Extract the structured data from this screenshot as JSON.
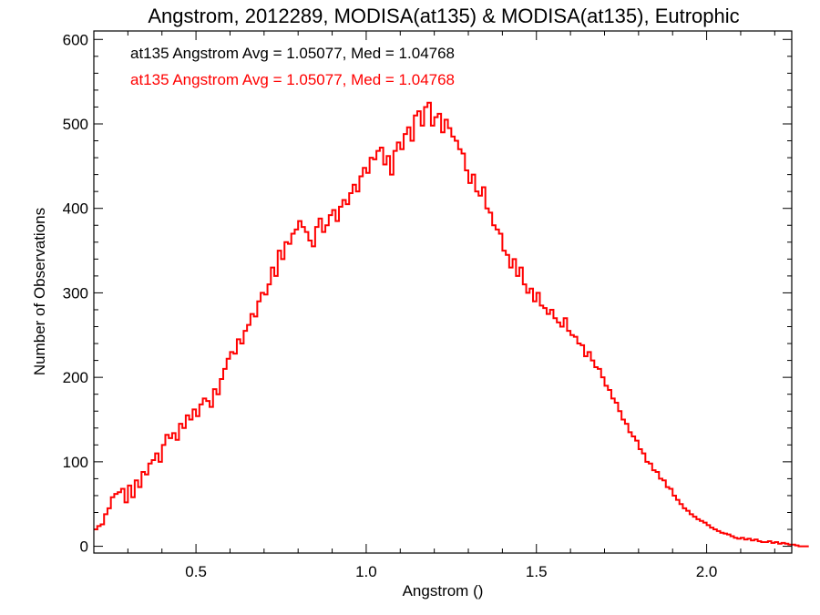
{
  "chart_data": {
    "type": "histogram",
    "title": "Angstrom, 2012289, MODISA(at135) & MODISA(at135), Eutrophic",
    "xlabel": "Angstrom ()",
    "ylabel": "Number of Observations",
    "xlim": [
      0.2,
      2.25
    ],
    "ylim": [
      -8,
      610
    ],
    "xticks": [
      0.5,
      1.0,
      1.5,
      2.0
    ],
    "xtick_labels": [
      "0.5",
      "1.0",
      "1.5",
      "2.0"
    ],
    "yticks": [
      0,
      100,
      200,
      300,
      400,
      500,
      600
    ],
    "ytick_labels": [
      "0",
      "100",
      "200",
      "300",
      "400",
      "500",
      "600"
    ],
    "grid": false,
    "annotations": [
      {
        "text": "at135 Angstrom Avg = 1.05077, Med = 1.04768",
        "color": "#000000"
      },
      {
        "text": "at135 Angstrom Avg = 1.05077, Med = 1.04768",
        "color": "#ff0000"
      }
    ],
    "series": [
      {
        "color": "#ff0000",
        "bin_start": 0.2,
        "bin_width": 0.01,
        "values": [
          20,
          24,
          26,
          38,
          45,
          58,
          62,
          64,
          68,
          52,
          72,
          58,
          78,
          70,
          88,
          85,
          98,
          102,
          110,
          100,
          120,
          132,
          128,
          134,
          126,
          145,
          140,
          155,
          150,
          162,
          154,
          168,
          175,
          172,
          165,
          186,
          180,
          198,
          210,
          222,
          230,
          228,
          245,
          240,
          255,
          262,
          275,
          272,
          290,
          300,
          298,
          310,
          330,
          320,
          350,
          340,
          360,
          358,
          370,
          375,
          385,
          378,
          372,
          362,
          355,
          378,
          388,
          372,
          380,
          392,
          398,
          385,
          402,
          410,
          405,
          418,
          428,
          420,
          438,
          448,
          442,
          460,
          458,
          468,
          472,
          452,
          462,
          440,
          468,
          478,
          470,
          488,
          496,
          480,
          510,
          515,
          498,
          520,
          525,
          498,
          508,
          512,
          490,
          505,
          495,
          485,
          480,
          470,
          465,
          445,
          430,
          440,
          420,
          415,
          425,
          400,
          395,
          380,
          375,
          370,
          350,
          345,
          330,
          340,
          320,
          330,
          310,
          300,
          305,
          290,
          300,
          285,
          282,
          275,
          280,
          270,
          265,
          260,
          270,
          255,
          250,
          248,
          240,
          238,
          225,
          230,
          220,
          212,
          210,
          200,
          190,
          185,
          175,
          170,
          160,
          150,
          145,
          135,
          130,
          125,
          115,
          110,
          100,
          98,
          90,
          88,
          80,
          78,
          70,
          68,
          60,
          55,
          50,
          45,
          42,
          38,
          35,
          32,
          30,
          28,
          25,
          22,
          20,
          18,
          16,
          15,
          14,
          12,
          10,
          9,
          10,
          8,
          9,
          7,
          8,
          6,
          5,
          5,
          6,
          4,
          5,
          3,
          4,
          3,
          2,
          2,
          1,
          0,
          0,
          0
        ]
      }
    ]
  }
}
